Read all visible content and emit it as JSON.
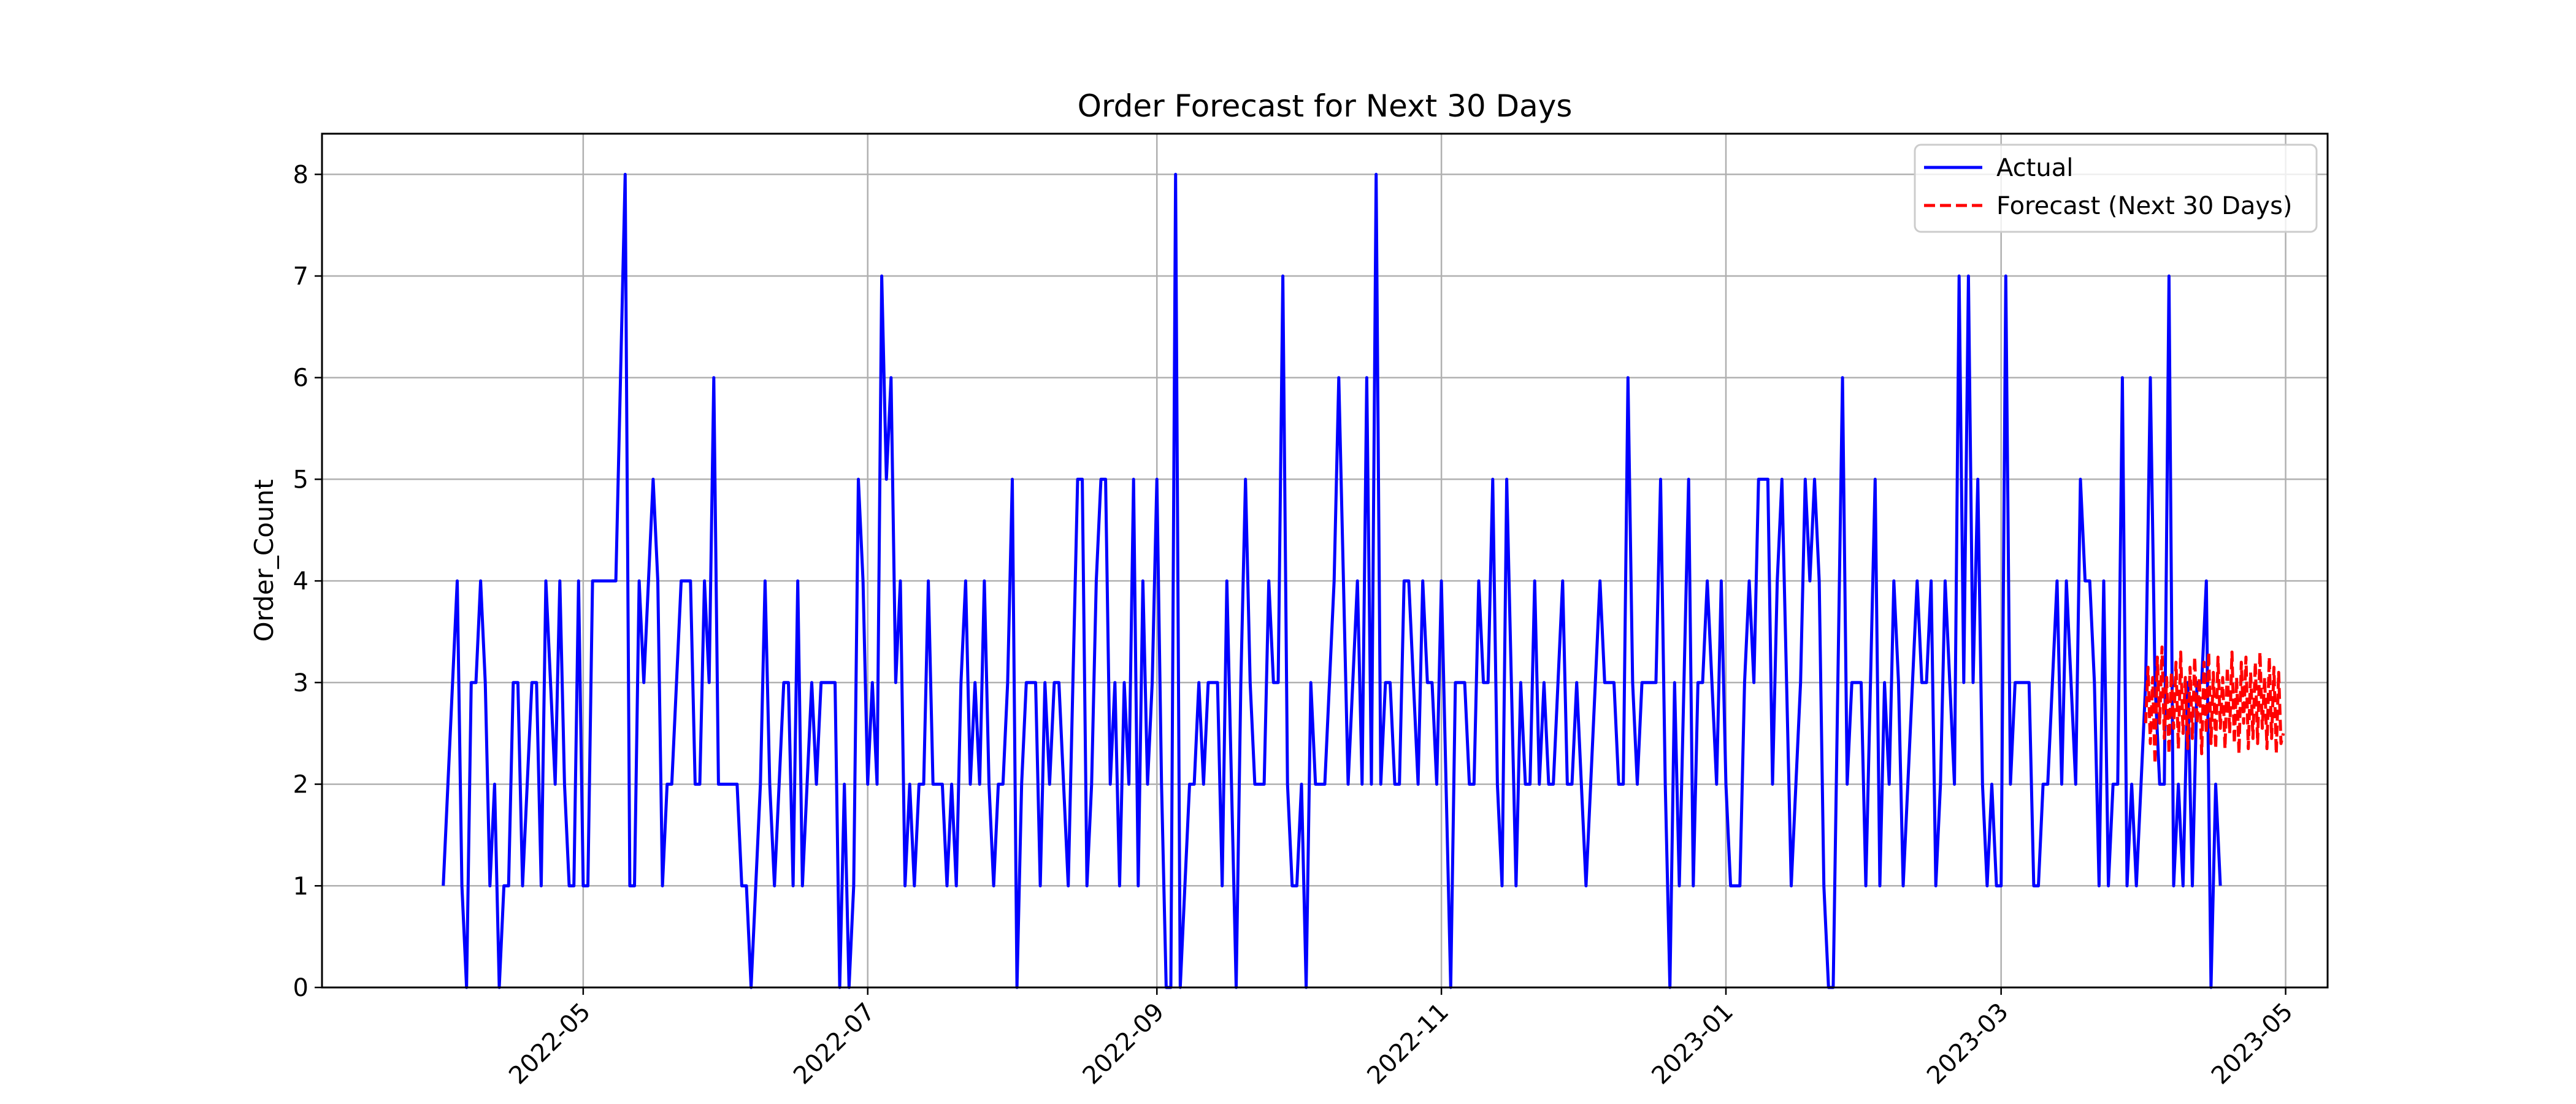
{
  "chart_data": {
    "type": "line",
    "title": "Order Forecast for Next 30 Days",
    "xlabel": "",
    "ylabel": "Order_Count",
    "x_axis": {
      "kind": "date",
      "range": [
        "2022-03-06",
        "2023-05-10"
      ],
      "ticks": [
        "2022-05-01",
        "2022-07-01",
        "2022-09-01",
        "2022-11-01",
        "2023-01-01",
        "2023-03-01",
        "2023-05-01"
      ],
      "tick_labels": [
        "2022-05",
        "2022-07",
        "2022-09",
        "2022-11",
        "2023-01",
        "2023-03",
        "2023-05"
      ],
      "tick_rotation_deg": 45
    },
    "y_axis": {
      "range": [
        0,
        8.4
      ],
      "ticks": [
        0,
        1,
        2,
        3,
        4,
        5,
        6,
        7,
        8
      ],
      "tick_labels": [
        "0",
        "1",
        "2",
        "3",
        "4",
        "5",
        "6",
        "7",
        "8"
      ]
    },
    "grid": true,
    "legend": {
      "position": "top-right"
    },
    "series": [
      {
        "name": "Actual",
        "color": "#0000ff",
        "style": "solid",
        "x_start": "2022-04-01",
        "x_step_days": 1,
        "values": [
          1,
          2,
          3,
          4,
          1,
          0,
          3,
          3,
          4,
          3,
          1,
          2,
          0,
          1,
          1,
          3,
          3,
          1,
          2,
          3,
          3,
          1,
          4,
          3,
          2,
          4,
          2,
          1,
          1,
          4,
          1,
          1,
          4,
          4,
          4,
          4,
          4,
          4,
          6,
          8,
          1,
          1,
          4,
          3,
          4,
          5,
          4,
          1,
          2,
          2,
          3,
          4,
          4,
          4,
          2,
          2,
          4,
          3,
          6,
          2,
          2,
          2,
          2,
          2,
          1,
          1,
          0,
          1,
          2,
          4,
          2,
          1,
          2,
          3,
          3,
          1,
          4,
          1,
          2,
          3,
          2,
          3,
          3,
          3,
          3,
          0,
          2,
          0,
          1,
          5,
          4,
          2,
          3,
          2,
          7,
          5,
          6,
          3,
          4,
          1,
          2,
          1,
          2,
          2,
          4,
          2,
          2,
          2,
          1,
          2,
          1,
          3,
          4,
          2,
          3,
          2,
          4,
          2,
          1,
          2,
          2,
          3,
          5,
          0,
          2,
          3,
          3,
          3,
          1,
          3,
          2,
          3,
          3,
          2,
          1,
          3,
          5,
          5,
          1,
          2,
          4,
          5,
          5,
          2,
          3,
          1,
          3,
          2,
          5,
          1,
          4,
          2,
          3,
          5,
          2,
          0,
          0,
          8,
          0,
          1,
          2,
          2,
          3,
          2,
          3,
          3,
          3,
          1,
          4,
          2,
          0,
          3,
          5,
          3,
          2,
          2,
          2,
          4,
          3,
          3,
          7,
          2,
          1,
          1,
          2,
          0,
          3,
          2,
          2,
          2,
          3,
          4,
          6,
          4,
          2,
          3,
          4,
          2,
          6,
          2,
          8,
          2,
          3,
          3,
          2,
          2,
          4,
          4,
          3,
          2,
          4,
          3,
          3,
          2,
          4,
          2,
          0,
          3,
          3,
          3,
          2,
          2,
          4,
          3,
          3,
          5,
          2,
          1,
          5,
          3,
          1,
          3,
          2,
          2,
          4,
          2,
          3,
          2,
          2,
          3,
          4,
          2,
          2,
          3,
          2,
          1,
          2,
          3,
          4,
          3,
          3,
          3,
          2,
          2,
          6,
          3,
          2,
          3,
          3,
          3,
          3,
          5,
          2,
          0,
          3,
          1,
          3,
          5,
          1,
          3,
          3,
          4,
          3,
          2,
          4,
          2,
          1,
          1,
          1,
          3,
          4,
          3,
          5,
          5,
          5,
          2,
          4,
          5,
          3,
          1,
          2,
          3,
          5,
          4,
          5,
          4,
          1,
          0,
          0,
          3,
          6,
          2,
          3,
          3,
          3,
          1,
          3,
          5,
          1,
          3,
          2,
          4,
          3,
          1,
          2,
          3,
          4,
          3,
          3,
          4,
          1,
          2,
          4,
          3,
          2,
          7,
          3,
          7,
          3,
          5,
          2,
          1,
          2,
          1,
          1,
          7,
          2,
          3,
          3,
          3,
          3,
          1,
          1,
          2,
          2,
          3,
          4,
          2,
          4,
          3,
          2,
          5,
          4,
          4,
          3,
          1,
          4,
          1,
          2,
          2,
          6,
          1,
          2,
          1,
          2,
          3,
          6,
          3,
          2,
          2,
          7,
          1,
          2,
          1,
          3,
          1,
          3,
          3,
          4,
          0,
          2,
          1
        ]
      },
      {
        "name": "Forecast (Next 30 Days)",
        "color": "#ff0000",
        "style": "dashed",
        "x_start": "2023-04-01",
        "x_step_days": 0.5,
        "values": [
          2.6,
          3.15,
          2.4,
          3.05,
          2.2,
          3.25,
          2.6,
          3.35,
          2.45,
          3.05,
          2.3,
          3.1,
          2.55,
          3.2,
          2.35,
          3.3,
          2.5,
          3.05,
          2.35,
          3.15,
          2.45,
          3.25,
          2.6,
          3.05,
          2.3,
          3.2,
          2.5,
          3.3,
          2.4,
          3.1,
          2.35,
          3.25,
          2.55,
          3.05,
          2.35,
          3.15,
          2.5,
          3.3,
          2.4,
          3.05,
          2.3,
          3.2,
          2.6,
          3.25,
          2.35,
          3.1,
          2.45,
          3.2,
          2.4,
          3.3,
          2.55,
          3.05,
          2.35,
          3.25,
          2.45,
          3.15,
          2.3,
          3.1,
          2.4,
          2.5
        ]
      }
    ]
  }
}
